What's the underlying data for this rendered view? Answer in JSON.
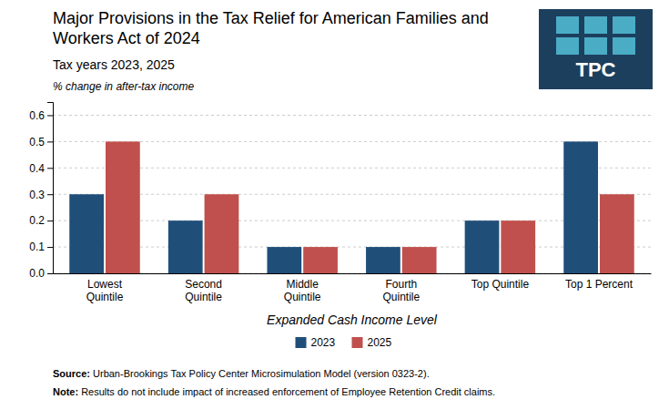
{
  "chart_data": {
    "type": "bar",
    "title": "Major Provisions in the Tax Relief for American Families and\nWorkers Act of 2024",
    "subtitle": "Tax years 2023, 2025",
    "y_label": "% change in after-tax income",
    "x_label": "Expanded Cash Income Level",
    "categories": [
      "Lowest\nQuintile",
      "Second\nQuintile",
      "Middle\nQuintile",
      "Fourth\nQuintile",
      "Top Quintile",
      "Top 1 Percent"
    ],
    "series": [
      {
        "name": "2023",
        "color": "#1F4E79",
        "values": [
          0.3,
          0.2,
          0.1,
          0.1,
          0.2,
          0.5
        ]
      },
      {
        "name": "2025",
        "color": "#C0504D",
        "values": [
          0.5,
          0.3,
          0.1,
          0.1,
          0.2,
          0.3
        ]
      }
    ],
    "ylim": [
      0.0,
      0.65
    ],
    "yticks": [
      {
        "value": 0.0,
        "label": "0.0"
      },
      0.1,
      0.2,
      0.3,
      0.4,
      0.5,
      0.6
    ],
    "grid": true,
    "legend": "bottom",
    "annotations": [
      "Source: Urban-Brookings Tax Policy Center Microsimulation Model (version 0323-2).",
      "Note: Results do not include impact of increased enforcement of Employee Retention Credit claims.",
      "TPC"
    ]
  }
}
